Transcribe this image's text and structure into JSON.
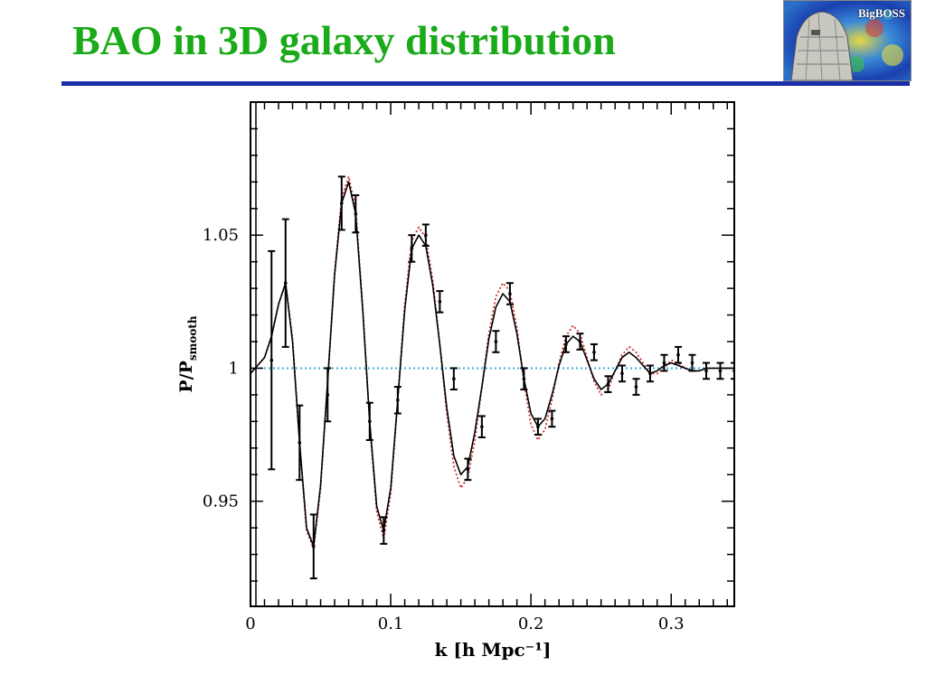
{
  "slide": {
    "title": "BAO in 3D galaxy distribution",
    "title_color": "#1aaa1a",
    "rule_color": "#1a2ea8",
    "logo_text": "BigBOSS"
  },
  "chart_data": {
    "type": "line",
    "title": "",
    "xlabel": "k [h Mpc⁻¹]",
    "ylabel_main": "P/P",
    "ylabel_sub": "smooth",
    "xlim": [
      0,
      0.345
    ],
    "ylim": [
      0.9105,
      1.1
    ],
    "x_ticks": [
      0,
      0.1,
      0.2,
      0.3
    ],
    "x_tick_labels": [
      "0",
      "0.1",
      "0.2",
      "0.3"
    ],
    "y_ticks": [
      0.95,
      1,
      1.05
    ],
    "y_tick_labels": [
      "0.95",
      "1",
      "1.05"
    ],
    "grid": false,
    "reference_line": {
      "y": 1,
      "color": "#3ab0d8",
      "style": "dotted"
    },
    "series": [
      {
        "style": "solid",
        "color": "#000000",
        "x": [
          0,
          0.005,
          0.01,
          0.015,
          0.02,
          0.025,
          0.03,
          0.035,
          0.04,
          0.045,
          0.05,
          0.055,
          0.06,
          0.065,
          0.07,
          0.075,
          0.08,
          0.085,
          0.09,
          0.095,
          0.1,
          0.105,
          0.11,
          0.115,
          0.12,
          0.125,
          0.13,
          0.135,
          0.14,
          0.145,
          0.15,
          0.155,
          0.16,
          0.165,
          0.17,
          0.175,
          0.18,
          0.185,
          0.19,
          0.195,
          0.2,
          0.205,
          0.21,
          0.215,
          0.22,
          0.225,
          0.23,
          0.235,
          0.24,
          0.245,
          0.25,
          0.255,
          0.26,
          0.265,
          0.27,
          0.275,
          0.28,
          0.285,
          0.29,
          0.295,
          0.3,
          0.305,
          0.31,
          0.315,
          0.32,
          0.325,
          0.33,
          0.335,
          0.34,
          0.345
        ],
        "y": [
          0.998,
          1.001,
          1.004,
          1.012,
          1.024,
          1.032,
          1.01,
          0.972,
          0.94,
          0.933,
          0.956,
          0.995,
          1.035,
          1.062,
          1.07,
          1.058,
          1.022,
          0.98,
          0.948,
          0.939,
          0.955,
          0.988,
          1.022,
          1.045,
          1.05,
          1.046,
          1.031,
          1.009,
          0.985,
          0.967,
          0.96,
          0.963,
          0.976,
          0.993,
          1.011,
          1.023,
          1.028,
          1.025,
          1.013,
          0.996,
          0.983,
          0.978,
          0.981,
          0.99,
          1.001,
          1.009,
          1.012,
          1.01,
          1.003,
          0.996,
          0.992,
          0.994,
          0.999,
          1.004,
          1.006,
          1.004,
          1.001,
          0.998,
          0.999,
          1.001,
          1.002,
          1.001,
          1,
          0.999,
          0.999,
          1,
          1,
          1,
          1,
          1
        ]
      },
      {
        "style": "dotted",
        "color": "#d03030",
        "x": [
          0,
          0.005,
          0.01,
          0.015,
          0.02,
          0.025,
          0.03,
          0.035,
          0.04,
          0.045,
          0.05,
          0.055,
          0.06,
          0.065,
          0.07,
          0.075,
          0.08,
          0.085,
          0.09,
          0.095,
          0.1,
          0.105,
          0.11,
          0.115,
          0.12,
          0.125,
          0.13,
          0.135,
          0.14,
          0.145,
          0.15,
          0.155,
          0.16,
          0.165,
          0.17,
          0.175,
          0.18,
          0.185,
          0.19,
          0.195,
          0.2,
          0.205,
          0.21,
          0.215,
          0.22,
          0.225,
          0.23,
          0.235,
          0.24,
          0.245,
          0.25,
          0.255,
          0.26,
          0.265,
          0.27,
          0.275,
          0.28,
          0.285,
          0.29,
          0.295,
          0.3,
          0.305,
          0.31,
          0.315,
          0.32,
          0.325,
          0.33,
          0.335,
          0.34,
          0.345
        ],
        "y": [
          0.998,
          1.001,
          1.004,
          1.012,
          1.024,
          1.032,
          1.011,
          0.972,
          0.939,
          0.932,
          0.955,
          0.995,
          1.036,
          1.064,
          1.072,
          1.06,
          1.023,
          0.979,
          0.946,
          0.936,
          0.953,
          0.988,
          1.024,
          1.048,
          1.053,
          1.049,
          1.033,
          1.009,
          0.983,
          0.963,
          0.955,
          0.959,
          0.973,
          0.993,
          1.013,
          1.027,
          1.032,
          1.029,
          1.015,
          0.995,
          0.979,
          0.973,
          0.977,
          0.988,
          1.002,
          1.012,
          1.016,
          1.013,
          1.004,
          0.995,
          0.99,
          0.992,
          0.999,
          1.005,
          1.008,
          1.006,
          1.002,
          0.998,
          0.998,
          1,
          1.003,
          1.002,
          1,
          0.999,
          0.999,
          1,
          1,
          1,
          1,
          1
        ]
      }
    ],
    "error_points": [
      {
        "x": 0.015,
        "y": 1.003,
        "err": 0.041
      },
      {
        "x": 0.025,
        "y": 1.032,
        "err": 0.024
      },
      {
        "x": 0.035,
        "y": 0.972,
        "err": 0.014
      },
      {
        "x": 0.045,
        "y": 0.933,
        "err": 0.012
      },
      {
        "x": 0.055,
        "y": 0.99,
        "err": 0.01
      },
      {
        "x": 0.065,
        "y": 1.062,
        "err": 0.01
      },
      {
        "x": 0.075,
        "y": 1.058,
        "err": 0.007
      },
      {
        "x": 0.085,
        "y": 0.98,
        "err": 0.007
      },
      {
        "x": 0.095,
        "y": 0.939,
        "err": 0.005
      },
      {
        "x": 0.105,
        "y": 0.988,
        "err": 0.005
      },
      {
        "x": 0.115,
        "y": 1.045,
        "err": 0.005
      },
      {
        "x": 0.125,
        "y": 1.05,
        "err": 0.004
      },
      {
        "x": 0.135,
        "y": 1.025,
        "err": 0.004
      },
      {
        "x": 0.145,
        "y": 0.996,
        "err": 0.004
      },
      {
        "x": 0.155,
        "y": 0.962,
        "err": 0.004
      },
      {
        "x": 0.165,
        "y": 0.978,
        "err": 0.004
      },
      {
        "x": 0.175,
        "y": 1.01,
        "err": 0.004
      },
      {
        "x": 0.185,
        "y": 1.028,
        "err": 0.004
      },
      {
        "x": 0.195,
        "y": 0.996,
        "err": 0.004
      },
      {
        "x": 0.205,
        "y": 0.978,
        "err": 0.003
      },
      {
        "x": 0.215,
        "y": 0.981,
        "err": 0.003
      },
      {
        "x": 0.225,
        "y": 1.009,
        "err": 0.003
      },
      {
        "x": 0.235,
        "y": 1.01,
        "err": 0.003
      },
      {
        "x": 0.245,
        "y": 1.006,
        "err": 0.003
      },
      {
        "x": 0.255,
        "y": 0.994,
        "err": 0.003
      },
      {
        "x": 0.265,
        "y": 0.998,
        "err": 0.003
      },
      {
        "x": 0.275,
        "y": 0.993,
        "err": 0.003
      },
      {
        "x": 0.285,
        "y": 0.998,
        "err": 0.003
      },
      {
        "x": 0.295,
        "y": 1.002,
        "err": 0.003
      },
      {
        "x": 0.305,
        "y": 1.005,
        "err": 0.003
      },
      {
        "x": 0.315,
        "y": 1.002,
        "err": 0.003
      },
      {
        "x": 0.325,
        "y": 0.999,
        "err": 0.003
      },
      {
        "x": 0.335,
        "y": 0.999,
        "err": 0.003
      },
      {
        "x": 0.345,
        "y": 0.999,
        "err": 0.003
      }
    ]
  }
}
